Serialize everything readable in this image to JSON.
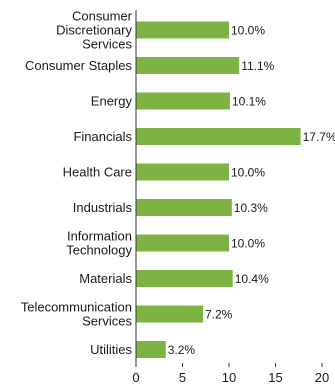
{
  "chart_data": {
    "type": "bar",
    "orientation": "horizontal",
    "categories": [
      [
        "Consumer",
        "Discretionary",
        "Services"
      ],
      [
        "Consumer Staples"
      ],
      [
        "Energy"
      ],
      [
        "Financials"
      ],
      [
        "Health Care"
      ],
      [
        "Industrials"
      ],
      [
        "Information",
        "Technology"
      ],
      [
        "Materials"
      ],
      [
        "Telecommunication",
        "Services"
      ],
      [
        "Utilities"
      ]
    ],
    "values": [
      10.0,
      11.1,
      10.1,
      17.7,
      10.0,
      10.3,
      10.0,
      10.4,
      7.2,
      3.2
    ],
    "data_labels": [
      "10.0%",
      "11.1%",
      "10.1%",
      "17.7%",
      "10.0%",
      "10.3%",
      "10.0%",
      "10.4%",
      "7.2%",
      "3.2%"
    ],
    "xlim": [
      0,
      20
    ],
    "xticks": [
      0,
      5,
      10,
      15,
      20
    ],
    "xtick_labels": [
      "0",
      "5",
      "10",
      "15",
      "20"
    ],
    "title": "",
    "xlabel": "",
    "ylabel": "",
    "grid": false,
    "legend": "none",
    "bar_color": "#7cb342",
    "axis_color": "#333333"
  }
}
